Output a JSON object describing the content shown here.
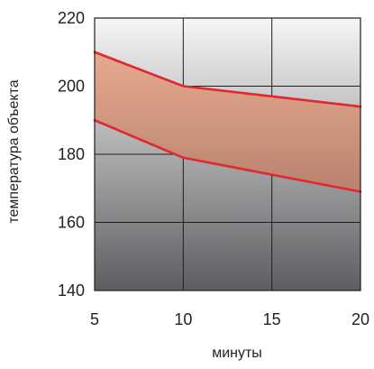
{
  "chart_data": {
    "type": "area",
    "xlabel": "минуты",
    "ylabel": "температура объекта",
    "x": [
      5,
      10,
      15,
      20
    ],
    "xlim": [
      5,
      20
    ],
    "ylim": [
      140,
      220
    ],
    "xticks": [
      "5",
      "10",
      "15",
      "20"
    ],
    "yticks": [
      "140",
      "160",
      "180",
      "200",
      "220"
    ],
    "grid": true,
    "series": [
      {
        "values": [
          210,
          200,
          197,
          194
        ]
      },
      {
        "values": [
          190,
          179,
          174,
          169
        ]
      }
    ],
    "colors": {
      "line": "#e0282e",
      "band_top": "#e6ab8e",
      "band_bottom": "#b9826f",
      "background_top": "#f6f6f7",
      "background_bottom": "#5d5e61",
      "grid": "#1e1e1e"
    }
  }
}
